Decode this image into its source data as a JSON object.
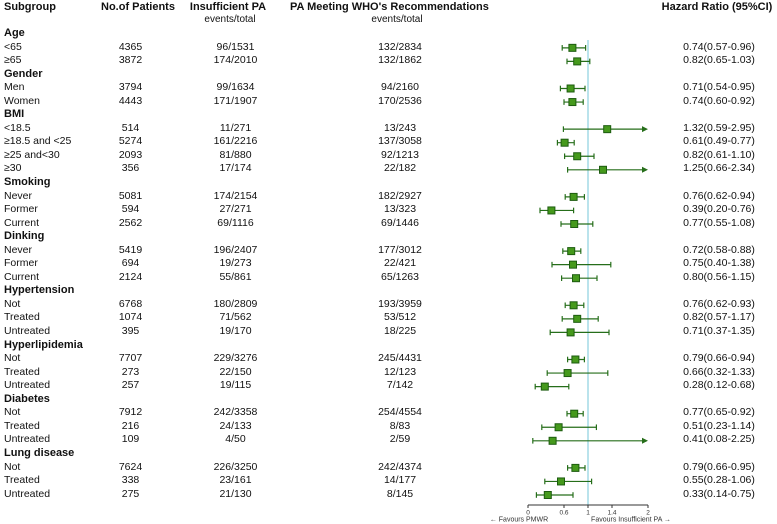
{
  "header": {
    "subgroup": "Subgroup",
    "patients": "No.of Patients",
    "insufficient": "Insufficient PA",
    "insufficient_sub": "events/total",
    "pa_meeting": "PA Meeting WHO's Recommendations",
    "pa_meeting_sub": "events/total",
    "hazard": "Hazard Ratio (95%CI)"
  },
  "axis": {
    "min": 0,
    "max": 2,
    "ref_line": 1,
    "ticks": [
      0,
      0.6,
      1,
      1.4,
      2
    ],
    "tick_labels": [
      "0",
      "0.6",
      "1",
      "1.4",
      "2"
    ],
    "left_label": "←   Favours PMWR",
    "right_label": "Favours Insufficient PA   →"
  },
  "colors": {
    "ci_line": "#266e1a",
    "marker_fill": "#45991c",
    "marker_stroke": "#1d5c10",
    "ref_line": "#a8dce8",
    "axis": "#333333",
    "text": "#111111"
  },
  "chart_data": {
    "type": "forest",
    "xlim": [
      0,
      2
    ],
    "columns": [
      "Subgroup",
      "No.of Patients",
      "Insufficient PA events/total",
      "PA Meeting WHO's Recommendations events/total",
      "Hazard Ratio (95%CI)"
    ],
    "groups": [
      {
        "label": "Age",
        "rows": [
          {
            "subgroup": "<65",
            "patients": "4365",
            "insufficient_pa": "96/1531",
            "pa_meeting": "132/2834",
            "hr": 0.74,
            "ci_low": 0.57,
            "ci_high": 0.96,
            "hr_text": "0.74(0.57-0.96)"
          },
          {
            "subgroup": "≥65",
            "patients": "3872",
            "insufficient_pa": "174/2010",
            "pa_meeting": "132/1862",
            "hr": 0.82,
            "ci_low": 0.65,
            "ci_high": 1.03,
            "hr_text": "0.82(0.65-1.03)"
          }
        ]
      },
      {
        "label": "Gender",
        "rows": [
          {
            "subgroup": "Men",
            "patients": "3794",
            "insufficient_pa": "99/1634",
            "pa_meeting": "94/2160",
            "hr": 0.71,
            "ci_low": 0.54,
            "ci_high": 0.95,
            "hr_text": "0.71(0.54-0.95)"
          },
          {
            "subgroup": "Women",
            "patients": "4443",
            "insufficient_pa": "171/1907",
            "pa_meeting": "170/2536",
            "hr": 0.74,
            "ci_low": 0.6,
            "ci_high": 0.92,
            "hr_text": "0.74(0.60-0.92)"
          }
        ]
      },
      {
        "label": "BMI",
        "rows": [
          {
            "subgroup": "<18.5",
            "patients": "514",
            "insufficient_pa": "11/271",
            "pa_meeting": "13/243",
            "hr": 1.32,
            "ci_low": 0.59,
            "ci_high": 2.95,
            "hr_text": "1.32(0.59-2.95)"
          },
          {
            "subgroup": "≥18.5 and <25",
            "patients": "5274",
            "insufficient_pa": "161/2216",
            "pa_meeting": "137/3058",
            "hr": 0.61,
            "ci_low": 0.49,
            "ci_high": 0.77,
            "hr_text": "0.61(0.49-0.77)"
          },
          {
            "subgroup": "≥25 and<30",
            "patients": "2093",
            "insufficient_pa": "81/880",
            "pa_meeting": "92/1213",
            "hr": 0.82,
            "ci_low": 0.61,
            "ci_high": 1.1,
            "hr_text": "0.82(0.61-1.10)"
          },
          {
            "subgroup": "≥30",
            "patients": "356",
            "insufficient_pa": "17/174",
            "pa_meeting": "22/182",
            "hr": 1.25,
            "ci_low": 0.66,
            "ci_high": 2.34,
            "hr_text": "1.25(0.66-2.34)"
          }
        ]
      },
      {
        "label": "Smoking",
        "rows": [
          {
            "subgroup": "Never",
            "patients": "5081",
            "insufficient_pa": "174/2154",
            "pa_meeting": "182/2927",
            "hr": 0.76,
            "ci_low": 0.62,
            "ci_high": 0.94,
            "hr_text": "0.76(0.62-0.94)"
          },
          {
            "subgroup": "Former",
            "patients": "594",
            "insufficient_pa": "27/271",
            "pa_meeting": "13/323",
            "hr": 0.39,
            "ci_low": 0.2,
            "ci_high": 0.76,
            "hr_text": "0.39(0.20-0.76)"
          },
          {
            "subgroup": "Current",
            "patients": "2562",
            "insufficient_pa": "69/1116",
            "pa_meeting": "69/1446",
            "hr": 0.77,
            "ci_low": 0.55,
            "ci_high": 1.08,
            "hr_text": "0.77(0.55-1.08)"
          }
        ]
      },
      {
        "label": "Dinking",
        "rows": [
          {
            "subgroup": "Never",
            "patients": "5419",
            "insufficient_pa": "196/2407",
            "pa_meeting": "177/3012",
            "hr": 0.72,
            "ci_low": 0.58,
            "ci_high": 0.88,
            "hr_text": "0.72(0.58-0.88)"
          },
          {
            "subgroup": "Former",
            "patients": "694",
            "insufficient_pa": "19/273",
            "pa_meeting": "22/421",
            "hr": 0.75,
            "ci_low": 0.4,
            "ci_high": 1.38,
            "hr_text": "0.75(0.40-1.38)"
          },
          {
            "subgroup": "Current",
            "patients": "2124",
            "insufficient_pa": "55/861",
            "pa_meeting": "65/1263",
            "hr": 0.8,
            "ci_low": 0.56,
            "ci_high": 1.15,
            "hr_text": "0.80(0.56-1.15)"
          }
        ]
      },
      {
        "label": "Hypertension",
        "rows": [
          {
            "subgroup": "Not",
            "patients": "6768",
            "insufficient_pa": "180/2809",
            "pa_meeting": "193/3959",
            "hr": 0.76,
            "ci_low": 0.62,
            "ci_high": 0.93,
            "hr_text": "0.76(0.62-0.93)"
          },
          {
            "subgroup": "Treated",
            "patients": "1074",
            "insufficient_pa": "71/562",
            "pa_meeting": "53/512",
            "hr": 0.82,
            "ci_low": 0.57,
            "ci_high": 1.17,
            "hr_text": "0.82(0.57-1.17)"
          },
          {
            "subgroup": "Untreated",
            "patients": "395",
            "insufficient_pa": "19/170",
            "pa_meeting": "18/225",
            "hr": 0.71,
            "ci_low": 0.37,
            "ci_high": 1.35,
            "hr_text": "0.71(0.37-1.35)"
          }
        ]
      },
      {
        "label": "Hyperlipidemia",
        "rows": [
          {
            "subgroup": "Not",
            "patients": "7707",
            "insufficient_pa": "229/3276",
            "pa_meeting": "245/4431",
            "hr": 0.79,
            "ci_low": 0.66,
            "ci_high": 0.94,
            "hr_text": "0.79(0.66-0.94)"
          },
          {
            "subgroup": "Treated",
            "patients": "273",
            "insufficient_pa": "22/150",
            "pa_meeting": "12/123",
            "hr": 0.66,
            "ci_low": 0.32,
            "ci_high": 1.33,
            "hr_text": "0.66(0.32-1.33)"
          },
          {
            "subgroup": "Untreated",
            "patients": "257",
            "insufficient_pa": "19/115",
            "pa_meeting": "7/142",
            "hr": 0.28,
            "ci_low": 0.12,
            "ci_high": 0.68,
            "hr_text": "0.28(0.12-0.68)"
          }
        ]
      },
      {
        "label": "Diabetes",
        "rows": [
          {
            "subgroup": "Not",
            "patients": "7912",
            "insufficient_pa": "242/3358",
            "pa_meeting": "254/4554",
            "hr": 0.77,
            "ci_low": 0.65,
            "ci_high": 0.92,
            "hr_text": "0.77(0.65-0.92)"
          },
          {
            "subgroup": "Treated",
            "patients": "216",
            "insufficient_pa": "24/133",
            "pa_meeting": "8/83",
            "hr": 0.51,
            "ci_low": 0.23,
            "ci_high": 1.14,
            "hr_text": "0.51(0.23-1.14)"
          },
          {
            "subgroup": "Untreated",
            "patients": "109",
            "insufficient_pa": "4/50",
            "pa_meeting": "2/59",
            "hr": 0.41,
            "ci_low": 0.08,
            "ci_high": 2.25,
            "hr_text": "0.41(0.08-2.25)"
          }
        ]
      },
      {
        "label": "Lung disease",
        "rows": [
          {
            "subgroup": "Not",
            "patients": "7624",
            "insufficient_pa": "226/3250",
            "pa_meeting": "242/4374",
            "hr": 0.79,
            "ci_low": 0.66,
            "ci_high": 0.95,
            "hr_text": "0.79(0.66-0.95)"
          },
          {
            "subgroup": "Treated",
            "patients": "338",
            "insufficient_pa": "23/161",
            "pa_meeting": "14/177",
            "hr": 0.55,
            "ci_low": 0.28,
            "ci_high": 1.06,
            "hr_text": "0.55(0.28-1.06)"
          },
          {
            "subgroup": "Untreated",
            "patients": "275",
            "insufficient_pa": "21/130",
            "pa_meeting": "8/145",
            "hr": 0.33,
            "ci_low": 0.14,
            "ci_high": 0.75,
            "hr_text": "0.33(0.14-0.75)"
          }
        ]
      }
    ]
  }
}
